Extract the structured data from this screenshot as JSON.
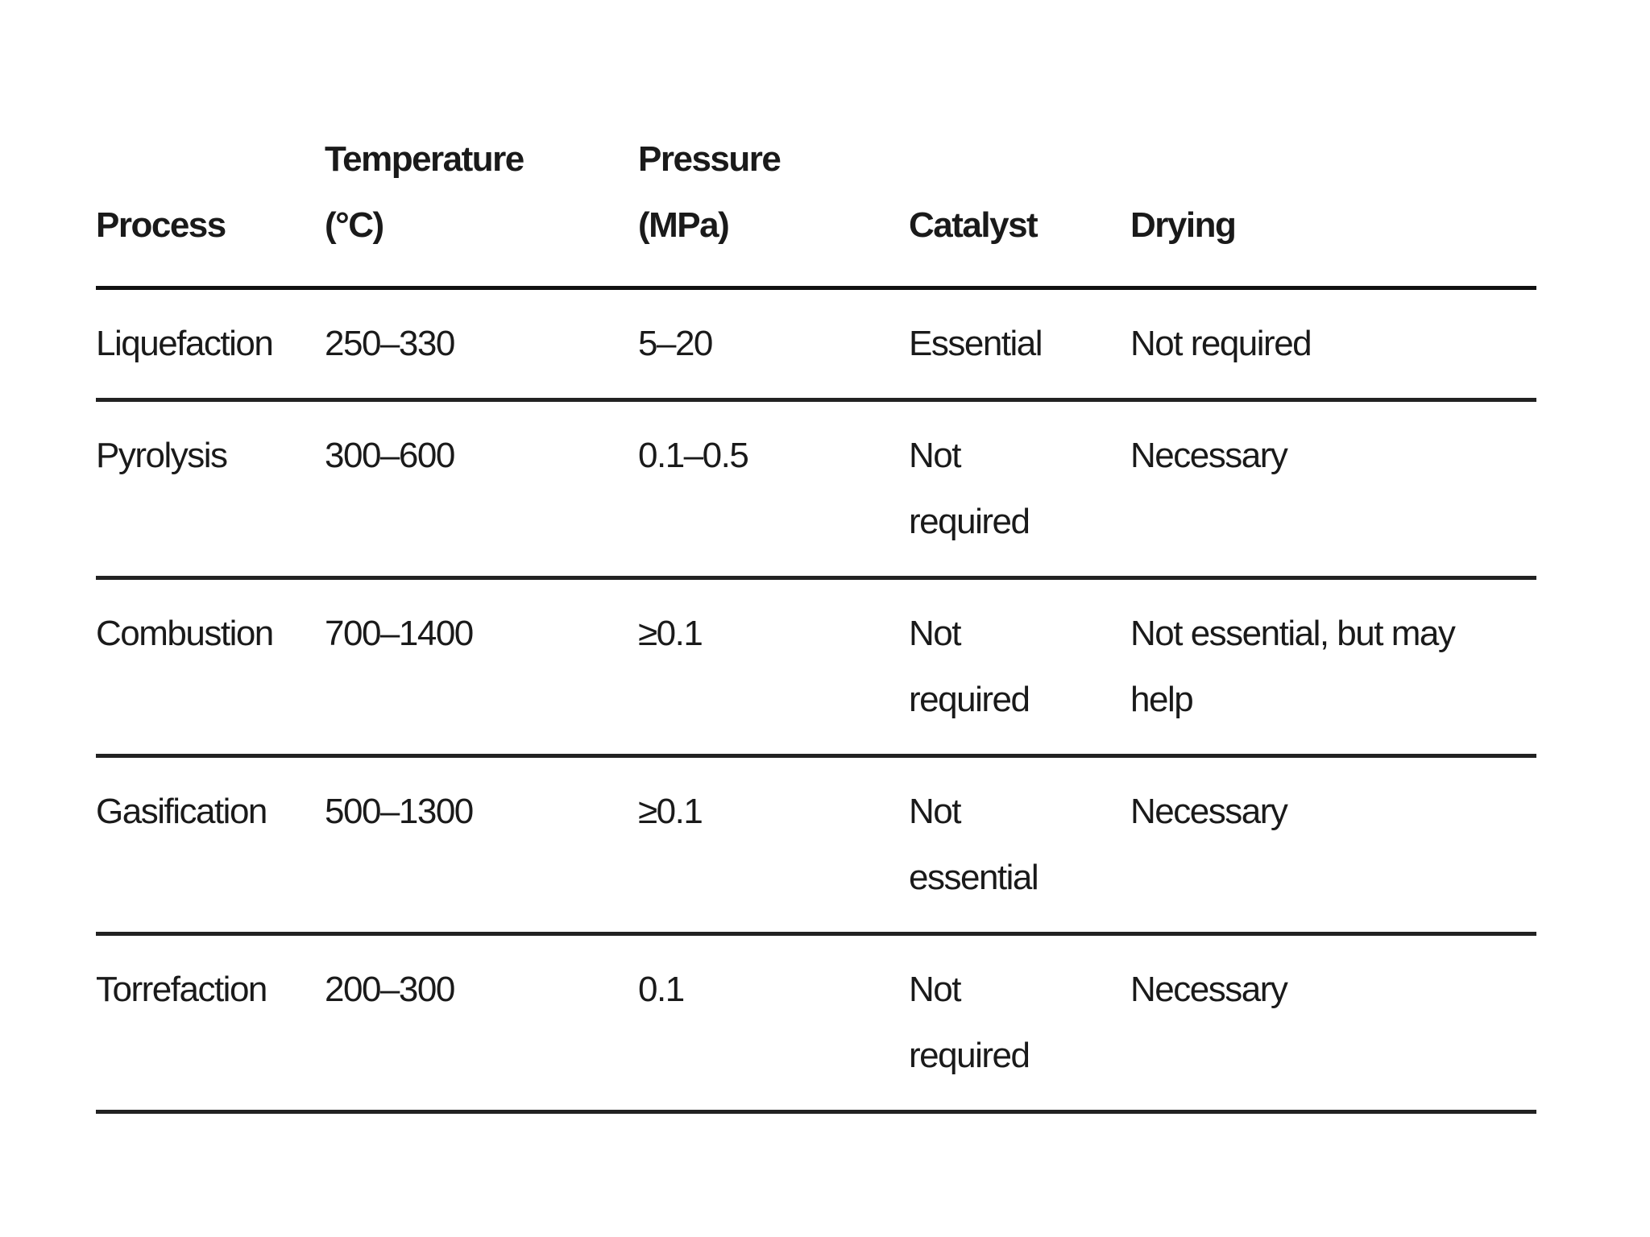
{
  "table": {
    "header": [
      "Process",
      "Temperature (°C)",
      "Pressure (MPa)",
      "Catalyst",
      "Drying"
    ],
    "rows": [
      [
        "Liquefaction",
        "250–330",
        "5–20",
        "Essential",
        "Not required"
      ],
      [
        "Pyrolysis",
        "300–600",
        "0.1–0.5",
        "Not required",
        "Necessary"
      ],
      [
        "Combustion",
        "700–1400",
        "≥0.1",
        "Not required",
        "Not essential, but may help"
      ],
      [
        "Gasification",
        "500–1300",
        "≥0.1",
        "Not essential",
        "Necessary"
      ],
      [
        "Torrefaction",
        "200–300",
        "0.1",
        "Not required",
        "Necessary"
      ]
    ]
  }
}
